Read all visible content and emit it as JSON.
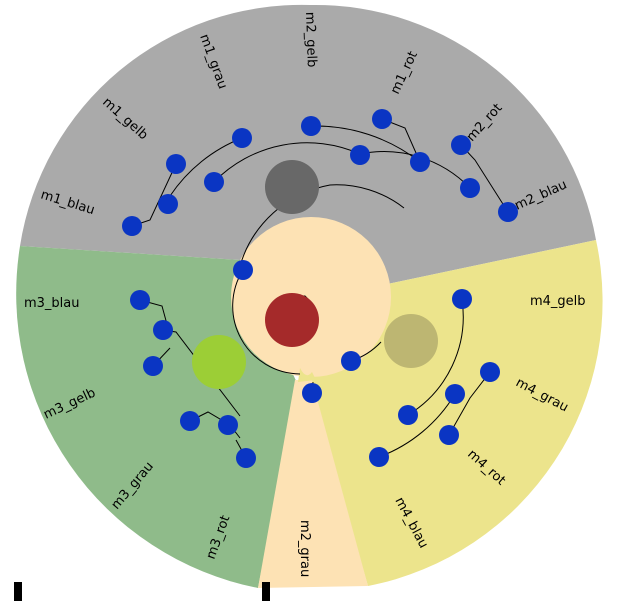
{
  "colors": {
    "sector_gray": "#aaaaaa",
    "sector_green": "#8fbb8a",
    "sector_yellow": "#ece48c",
    "sector_peach": "#fde2b4",
    "node_blue": "#0a35c3",
    "node_dark_gray": "#686868",
    "node_lime": "#9cce36",
    "node_olive": "#bdb672",
    "node_red": "#a52a2a",
    "branch_line": "#000000"
  },
  "leaf_labels": {
    "m1_blau": "m1_blau",
    "m1_gelb": "m1_gelb",
    "m1_grau": "m1_grau",
    "m2_gelb": "m2_gelb",
    "m1_rot": "m1_rot",
    "m2_rot": "m2_rot",
    "m2_blau": "m2_blau",
    "m3_blau": "m3_blau",
    "m3_gelb": "m3_gelb",
    "m3_grau": "m3_grau",
    "m3_rot": "m3_rot",
    "m2_grau": "m2_grau",
    "m4_blau": "m4_blau",
    "m4_rot": "m4_rot",
    "m4_grau": "m4_grau",
    "m4_gelb": "m4_gelb"
  }
}
